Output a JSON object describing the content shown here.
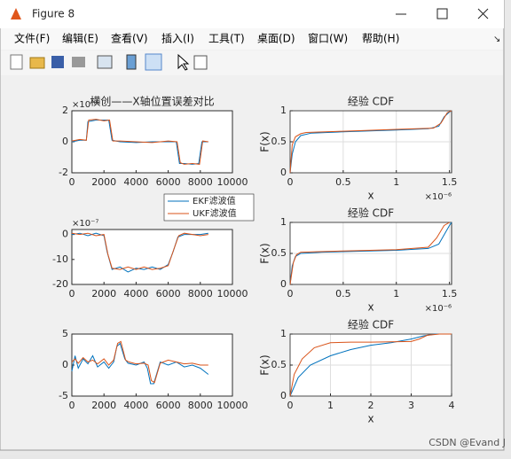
{
  "window": {
    "title": "Figure 8",
    "menu": [
      "文件(F)",
      "编辑(E)",
      "查看(V)",
      "插入(I)",
      "工具(T)",
      "桌面(D)",
      "窗口(W)",
      "帮助(H)"
    ],
    "watermark": "CSDN @Evand J"
  },
  "chart_data": [
    {
      "type": "line",
      "title": "横创——X轴位置误差对比",
      "y_multiplier": "×10⁻⁶",
      "xlim": [
        0,
        10000
      ],
      "xticks": [
        0,
        2000,
        4000,
        6000,
        8000,
        10000
      ],
      "ylim": [
        -2,
        2
      ],
      "yticks": [
        -2,
        0,
        2
      ],
      "grid": false,
      "series": [
        {
          "name": "EKF滤波值",
          "color": "#0072bd",
          "x": [
            0,
            500,
            900,
            1000,
            1500,
            2000,
            2300,
            2500,
            3000,
            4000,
            5000,
            6000,
            6500,
            6700,
            7000,
            7500,
            7900,
            8100,
            8500
          ],
          "values": [
            0,
            0.1,
            0.1,
            1.3,
            1.4,
            1.4,
            1.4,
            0.1,
            0,
            -0.05,
            0,
            0,
            0,
            -1.4,
            -1.4,
            -1.45,
            -1.4,
            0,
            0
          ]
        },
        {
          "name": "UKF滤波值",
          "color": "#d95319",
          "x": [
            0,
            500,
            900,
            1050,
            1500,
            2000,
            2350,
            2550,
            3000,
            4000,
            5000,
            6000,
            6550,
            6750,
            7000,
            7500,
            7950,
            8150,
            8500
          ],
          "values": [
            0.05,
            0.15,
            0.1,
            1.4,
            1.45,
            1.35,
            1.4,
            0.05,
            0.05,
            0,
            -0.05,
            0.05,
            0,
            -1.35,
            -1.45,
            -1.4,
            -1.45,
            0.05,
            0
          ]
        }
      ]
    },
    {
      "type": "line",
      "title": "经验 CDF",
      "xlabel": "x",
      "ylabel": "F(x)",
      "x_multiplier": "×10⁻⁶",
      "xlim": [
        0,
        1.52
      ],
      "xticks": [
        0,
        0.5,
        1,
        1.5
      ],
      "ylim": [
        0,
        1
      ],
      "yticks": [
        0,
        0.5,
        1
      ],
      "grid": true,
      "series": [
        {
          "name": "EKF滤波值",
          "color": "#0072bd",
          "x": [
            0,
            0.02,
            0.05,
            0.1,
            0.2,
            0.5,
            1,
            1.3,
            1.4,
            1.45,
            1.5,
            1.52
          ],
          "values": [
            0,
            0.3,
            0.5,
            0.6,
            0.64,
            0.66,
            0.69,
            0.71,
            0.75,
            0.9,
            0.98,
            1
          ]
        },
        {
          "name": "UKF滤波值",
          "color": "#d95319",
          "x": [
            0,
            0.02,
            0.05,
            0.1,
            0.15,
            0.5,
            1,
            1.35,
            1.42,
            1.48,
            1.52
          ],
          "values": [
            0,
            0.45,
            0.58,
            0.63,
            0.65,
            0.67,
            0.7,
            0.72,
            0.8,
            0.97,
            1
          ]
        }
      ]
    },
    {
      "type": "line",
      "y_multiplier": "×10⁻⁷",
      "xlim": [
        0,
        10000
      ],
      "xticks": [
        0,
        2000,
        4000,
        6000,
        8000,
        10000
      ],
      "ylim": [
        -20,
        2
      ],
      "yticks": [
        -20,
        -10,
        0
      ],
      "grid": false,
      "legend": true,
      "series": [
        {
          "name": "EKF滤波值",
          "color": "#0072bd",
          "x": [
            0,
            500,
            1000,
            1500,
            2000,
            2200,
            2500,
            3000,
            3500,
            4000,
            4500,
            5000,
            5500,
            6000,
            6300,
            6600,
            7000,
            8000,
            8500
          ],
          "values": [
            0,
            0.5,
            -0.5,
            0.5,
            -0.5,
            -7,
            -14,
            -13,
            -15,
            -13.5,
            -14,
            -13,
            -14,
            -12,
            -7,
            -1,
            0,
            0,
            0.5
          ]
        },
        {
          "name": "UKF滤波值",
          "color": "#d95319",
          "x": [
            0,
            500,
            1000,
            1500,
            2000,
            2250,
            2500,
            3000,
            3500,
            4000,
            4500,
            5000,
            5500,
            6000,
            6350,
            6650,
            7000,
            8000,
            8500
          ],
          "values": [
            0.5,
            0,
            0.5,
            -0.5,
            0,
            -8,
            -13.5,
            -14,
            -13,
            -14,
            -13,
            -14,
            -13.5,
            -12.5,
            -6,
            -0.5,
            0.5,
            -0.5,
            0
          ]
        }
      ]
    },
    {
      "type": "line",
      "title": "经验 CDF",
      "xlabel": "x",
      "ylabel": "F(x)",
      "x_multiplier": "×10⁻⁶",
      "xlim": [
        0,
        1.52
      ],
      "xticks": [
        0,
        0.5,
        1,
        1.5
      ],
      "ylim": [
        0,
        1
      ],
      "yticks": [
        0,
        0.5,
        1
      ],
      "grid": true,
      "series": [
        {
          "name": "EKF滤波值",
          "color": "#0072bd",
          "x": [
            0,
            0.02,
            0.05,
            0.1,
            0.3,
            1,
            1.3,
            1.4,
            1.45,
            1.5,
            1.52
          ],
          "values": [
            0,
            0.3,
            0.45,
            0.5,
            0.52,
            0.55,
            0.58,
            0.65,
            0.8,
            0.95,
            1
          ]
        },
        {
          "name": "UKF滤波值",
          "color": "#d95319",
          "x": [
            0,
            0.03,
            0.06,
            0.1,
            0.5,
            1,
            1.3,
            1.38,
            1.45,
            1.5
          ],
          "values": [
            0,
            0.35,
            0.48,
            0.52,
            0.54,
            0.56,
            0.6,
            0.75,
            0.95,
            1
          ]
        }
      ]
    },
    {
      "type": "line",
      "xlim": [
        0,
        10000
      ],
      "xticks": [
        0,
        2000,
        4000,
        6000,
        8000,
        10000
      ],
      "ylim": [
        -5,
        5
      ],
      "yticks": [
        -5,
        0,
        5
      ],
      "grid": false,
      "series": [
        {
          "name": "EKF滤波值",
          "color": "#0072bd",
          "x": [
            0,
            200,
            400,
            700,
            1000,
            1300,
            1600,
            2000,
            2300,
            2600,
            2800,
            3000,
            3300,
            3500,
            4000,
            4500,
            4700,
            4900,
            5100,
            5500,
            6000,
            6500,
            7000,
            7500,
            8000,
            8500
          ],
          "values": [
            -1,
            1.5,
            -0.5,
            1,
            0.2,
            1.5,
            -0.3,
            0.5,
            -0.5,
            0.5,
            3,
            3.5,
            1,
            0.3,
            0,
            0.5,
            -0.5,
            -3,
            -3,
            0.5,
            0,
            0.5,
            -0.3,
            0,
            -0.5,
            -1.5
          ]
        },
        {
          "name": "UKF滤波值",
          "color": "#d95319",
          "x": [
            0,
            200,
            400,
            700,
            1000,
            1300,
            1600,
            2000,
            2300,
            2600,
            2850,
            3050,
            3350,
            3550,
            4000,
            4500,
            4750,
            4950,
            5150,
            5500,
            6000,
            6500,
            7000,
            7500,
            8000,
            8500
          ],
          "values": [
            0.5,
            1,
            0.3,
            1.2,
            0.5,
            0.8,
            0.2,
            1,
            0,
            0.8,
            3.5,
            3.8,
            0.8,
            0.5,
            0.2,
            0.3,
            0,
            -2.5,
            -2.8,
            0.3,
            0.8,
            0.5,
            0.2,
            0.3,
            0,
            0
          ]
        }
      ]
    },
    {
      "type": "line",
      "title": "经验 CDF",
      "xlabel": "x",
      "ylabel": "F(x)",
      "xlim": [
        0,
        4
      ],
      "xticks": [
        0,
        1,
        2,
        3,
        4
      ],
      "ylim": [
        0,
        1
      ],
      "yticks": [
        0,
        0.5,
        1
      ],
      "grid": true,
      "series": [
        {
          "name": "EKF滤波值",
          "color": "#0072bd",
          "x": [
            0,
            0.2,
            0.5,
            1,
            1.5,
            2,
            2.5,
            3,
            3.3,
            3.6,
            4
          ],
          "values": [
            0,
            0.3,
            0.5,
            0.65,
            0.75,
            0.82,
            0.86,
            0.92,
            0.97,
            1,
            1
          ]
        },
        {
          "name": "UKF滤波值",
          "color": "#d95319",
          "x": [
            0,
            0.1,
            0.3,
            0.6,
            1,
            1.5,
            2,
            3,
            3.2,
            3.4,
            3.7,
            4
          ],
          "values": [
            0,
            0.35,
            0.6,
            0.78,
            0.86,
            0.87,
            0.87,
            0.88,
            0.92,
            0.98,
            1,
            1
          ]
        }
      ]
    }
  ]
}
